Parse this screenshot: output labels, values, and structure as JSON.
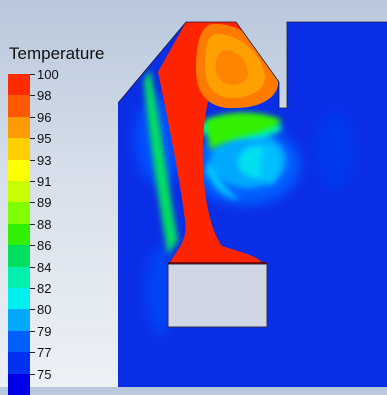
{
  "legend": {
    "title": "Temperature",
    "labels": [
      "100",
      "98",
      "96",
      "95",
      "93",
      "91",
      "89",
      "88",
      "86",
      "84",
      "82",
      "80",
      "79",
      "77",
      "75"
    ],
    "colors": [
      "#ff2a00",
      "#ff5a00",
      "#ff9a00",
      "#ffd000",
      "#ffff00",
      "#c8ff00",
      "#80ff00",
      "#30f000",
      "#00e060",
      "#00f0b0",
      "#00f0f0",
      "#00a8ff",
      "#0060ff",
      "#0030f0",
      "#0000e6"
    ]
  },
  "field": {
    "solid_fill": "#d0d6e4",
    "cold_color": "#0a2ee6"
  }
}
